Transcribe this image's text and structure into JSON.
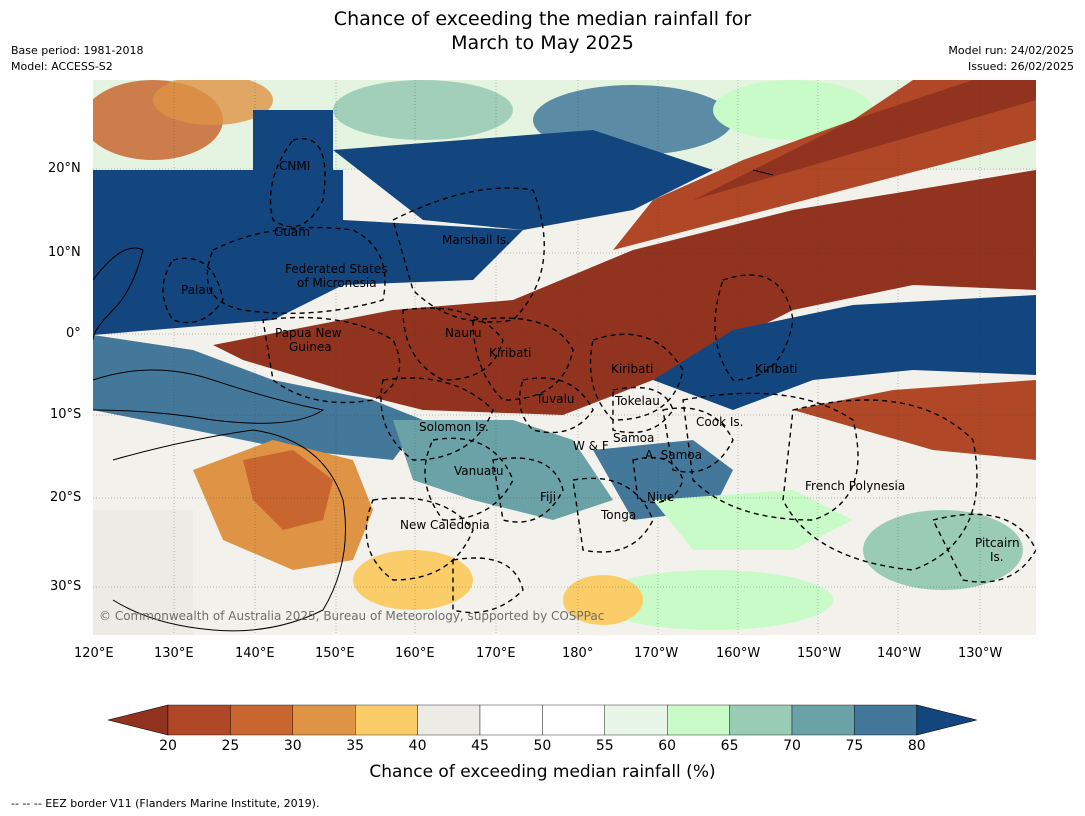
{
  "title_line1": "Chance of exceeding the median rainfall for",
  "title_line2": "March to May 2025",
  "base_period": "Base period: 1981-2018",
  "model": "Model: ACCESS-S2",
  "model_run": "Model run: 24/02/2025",
  "issued": "Issued: 26/02/2025",
  "copyright": "© Commonwealth of Australia 2025, Bureau of Meteorology, supported by COSPPac",
  "footer": "--  --  -- EEZ border V11 (Flanders Marine Institute, 2019).",
  "lat_labels": [
    "20°N",
    "10°N",
    "0°",
    "10°S",
    "20°S",
    "30°S"
  ],
  "lon_labels": [
    "120°E",
    "130°E",
    "140°E",
    "150°E",
    "160°E",
    "170°E",
    "180°",
    "170°W",
    "160°W",
    "150°W",
    "140°W",
    "130°W"
  ],
  "colorbar": {
    "title": "Chance of exceeding median rainfall (%)",
    "ticks": [
      "20",
      "25",
      "30",
      "35",
      "40",
      "45",
      "50",
      "55",
      "60",
      "65",
      "70",
      "75",
      "80"
    ],
    "colors": [
      "#923320",
      "#b04828",
      "#c96630",
      "#df9445",
      "#fbcd68",
      "#ecebe5",
      "#ffffff",
      "#ffffff",
      "#e7f6e7",
      "#c9fbc9",
      "#99cbb5",
      "#6aa2a8",
      "#44789a",
      "#13457f"
    ]
  },
  "regions": [
    {
      "name": "CNMI"
    },
    {
      "name": "Guam"
    },
    {
      "name": "Marshall Is."
    },
    {
      "name": "Federated States"
    },
    {
      "name": "of Micronesia"
    },
    {
      "name": "Palau"
    },
    {
      "name": "Papua New"
    },
    {
      "name": "Guinea"
    },
    {
      "name": "Nauru"
    },
    {
      "name": "Kiribati"
    },
    {
      "name": "Kiribati"
    },
    {
      "name": "Kiribati"
    },
    {
      "name": "Tuvalu"
    },
    {
      "name": "Tokelau"
    },
    {
      "name": "Solomon Is."
    },
    {
      "name": "Cook Is."
    },
    {
      "name": "Samoa"
    },
    {
      "name": "W & F"
    },
    {
      "name": "A. Samoa"
    },
    {
      "name": "Vanuatu"
    },
    {
      "name": "Fiji"
    },
    {
      "name": "Niue"
    },
    {
      "name": "French Polynesia"
    },
    {
      "name": "Tonga"
    },
    {
      "name": "New Caledonia"
    },
    {
      "name": "Pitcairn"
    },
    {
      "name": "Is."
    }
  ]
}
